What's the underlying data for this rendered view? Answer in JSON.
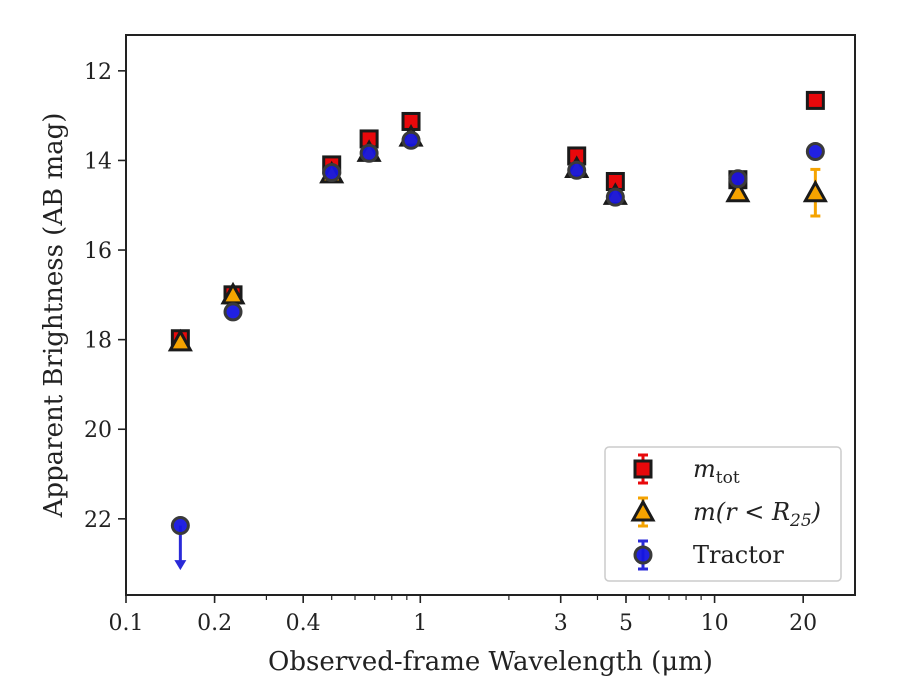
{
  "chart_data": {
    "type": "scatter",
    "xlabel": "Observed-frame Wavelength (μm)",
    "ylabel": "Apparent Brightness (AB mag)",
    "x_scale": "log",
    "xlim": [
      0.1,
      30
    ],
    "ylim": [
      23.7,
      11.2
    ],
    "y_inverted": true,
    "grid": false,
    "legend_position": "lower-right",
    "x_ticks": [
      {
        "value": 0.1,
        "label": "0.1"
      },
      {
        "value": 0.2,
        "label": "0.2"
      },
      {
        "value": 0.4,
        "label": "0.4"
      },
      {
        "value": 1,
        "label": "1"
      },
      {
        "value": 3,
        "label": "3"
      },
      {
        "value": 5,
        "label": "5"
      },
      {
        "value": 10,
        "label": "10"
      },
      {
        "value": 20,
        "label": "20"
      }
    ],
    "y_ticks": [
      {
        "value": 12,
        "label": "12"
      },
      {
        "value": 14,
        "label": "14"
      },
      {
        "value": 16,
        "label": "16"
      },
      {
        "value": 18,
        "label": "18"
      },
      {
        "value": 20,
        "label": "20"
      },
      {
        "value": 22,
        "label": "22"
      }
    ],
    "series": [
      {
        "name": "m_tot",
        "legend_main": "m",
        "legend_sub": "tot",
        "marker": "square",
        "color": "#e8080b",
        "error_color": "#e8080b",
        "points": [
          {
            "x": 0.153,
            "y": 17.98,
            "err": 0.05
          },
          {
            "x": 0.231,
            "y": 17.0,
            "err": 0.05
          },
          {
            "x": 0.5,
            "y": 14.1,
            "err": 0.03
          },
          {
            "x": 0.67,
            "y": 13.52,
            "err": 0.03
          },
          {
            "x": 0.93,
            "y": 13.13,
            "err": 0.03
          },
          {
            "x": 3.4,
            "y": 13.9,
            "err": 0.03
          },
          {
            "x": 4.6,
            "y": 14.47,
            "err": 0.03
          },
          {
            "x": 12.0,
            "y": 14.43,
            "err": 0.03
          },
          {
            "x": 22.0,
            "y": 12.66,
            "err": 0.03
          }
        ]
      },
      {
        "name": "m(r < R_25)",
        "legend_main": "m(r < R",
        "legend_sub": "25",
        "legend_tail": ")",
        "marker": "triangle",
        "color": "#f5a300",
        "error_color": "#f5a300",
        "points": [
          {
            "x": 0.153,
            "y": 18.05,
            "err": 0.05
          },
          {
            "x": 0.231,
            "y": 17.0,
            "err": 0.05
          },
          {
            "x": 0.5,
            "y": 14.3,
            "err": 0.03
          },
          {
            "x": 0.67,
            "y": 13.82,
            "err": 0.03
          },
          {
            "x": 0.93,
            "y": 13.48,
            "err": 0.03
          },
          {
            "x": 3.4,
            "y": 14.18,
            "err": 0.03
          },
          {
            "x": 4.6,
            "y": 14.78,
            "err": 0.03
          },
          {
            "x": 12.0,
            "y": 14.72,
            "err": 0.05
          },
          {
            "x": 22.0,
            "y": 14.72,
            "err": 0.52
          }
        ]
      },
      {
        "name": "Tractor",
        "legend_main": "Tractor",
        "marker": "circle",
        "color": "#1515e0",
        "error_color": "#2a2ad8",
        "points": [
          {
            "x": 0.153,
            "y": 22.15,
            "err": 0,
            "upper_limit": true
          },
          {
            "x": 0.231,
            "y": 17.38,
            "err": 0.05
          },
          {
            "x": 0.5,
            "y": 14.27,
            "err": 0.03
          },
          {
            "x": 0.67,
            "y": 13.84,
            "err": 0.03
          },
          {
            "x": 0.93,
            "y": 13.55,
            "err": 0.03
          },
          {
            "x": 3.4,
            "y": 14.22,
            "err": 0.03
          },
          {
            "x": 4.6,
            "y": 14.82,
            "err": 0.03
          },
          {
            "x": 12.0,
            "y": 14.41,
            "err": 0.03
          },
          {
            "x": 22.0,
            "y": 13.8,
            "err": 0.03
          }
        ]
      }
    ]
  }
}
